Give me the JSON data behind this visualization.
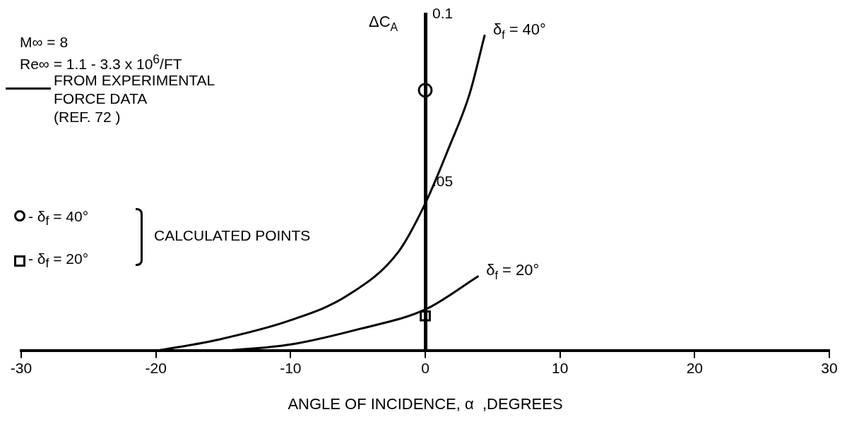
{
  "chart_data": {
    "type": "line",
    "xlabel": "ANGLE OF INCIDENCE, α  ,DEGREES",
    "ylabel": "ΔC$_{A}$",
    "xlim": [
      -30,
      30
    ],
    "xticks": [
      -30,
      -20,
      -10,
      0,
      10,
      20,
      30
    ],
    "ylim": [
      0,
      0.1
    ],
    "yticks": [
      {
        "value": 0.05,
        "label": ".05"
      },
      {
        "value": 0.1,
        "label": "0.1"
      }
    ],
    "grid": false,
    "legend": false,
    "line_style": "solid",
    "series": [
      {
        "name": "δ$_{f}$ = 40°",
        "marker": "none",
        "color": "#000000",
        "x": [
          -20,
          -15.3,
          -10,
          -5.8,
          -2,
          0,
          1.7,
          3.3,
          4.4
        ],
        "values": [
          0,
          0.0034,
          0.0091,
          0.0164,
          0.0294,
          0.0438,
          0.0598,
          0.0764,
          0.0936
        ]
      },
      {
        "name": "δ$_{f}$ = 20°",
        "marker": "none",
        "color": "#000000",
        "x": [
          -15,
          -10,
          -4.8,
          0,
          3.9
        ],
        "values": [
          0,
          0.0019,
          0.0066,
          0.0123,
          0.0221
        ]
      },
      {
        "type": "scatter",
        "marker": "circle",
        "color": "#000000",
        "x": [
          0
        ],
        "values": [
          0.0774
        ]
      },
      {
        "type": "scatter",
        "marker": "square",
        "color": "#000000",
        "x": [
          0
        ],
        "values": [
          0.0104
        ]
      }
    ],
    "annotations": [
      "M∞ = 8",
      "Re∞ = 1.1 - 3.3 x 10$^{6}$/FT",
      "FROM EXPERIMENTAL",
      "FORCE DATA",
      "(REF. 72 )",
      "- δ$_{f}$ = 40°",
      "- δ$_{f}$ = 20°",
      "CALCULATED POINTS"
    ]
  }
}
